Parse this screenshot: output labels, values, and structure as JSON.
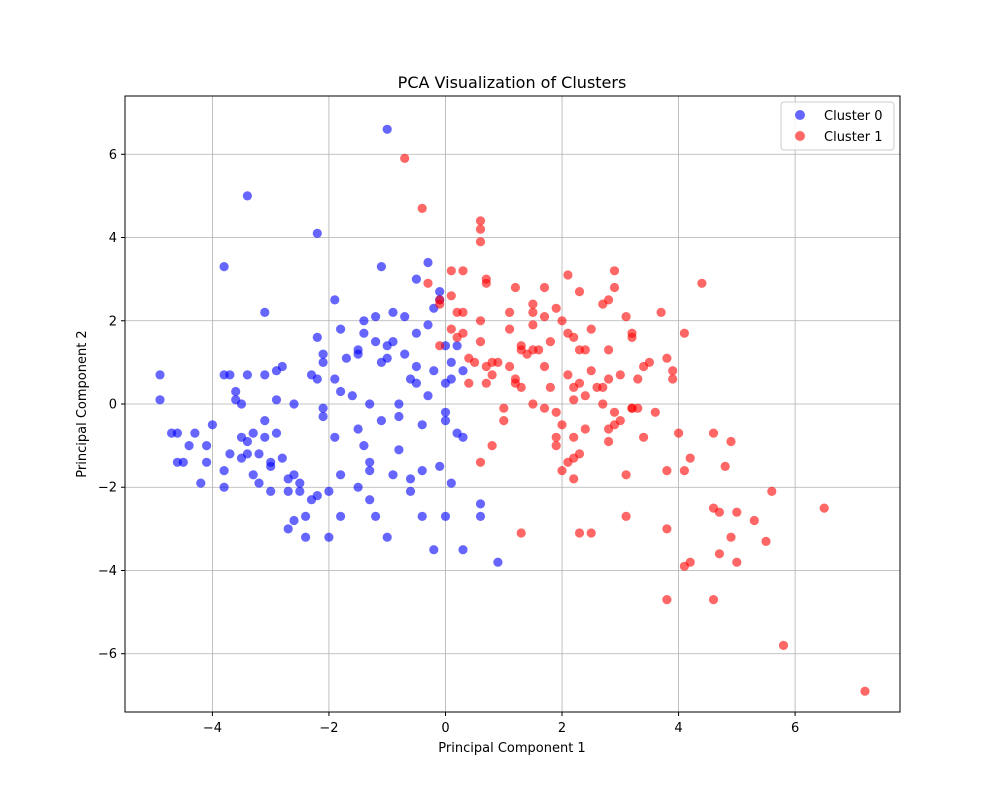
{
  "chart_data": {
    "type": "scatter",
    "title": "PCA Visualization of Clusters",
    "xlabel": "Principal Component 1",
    "ylabel": "Principal Component 2",
    "xlim": [
      -5.5,
      7.8
    ],
    "ylim": [
      -7.4,
      7.4
    ],
    "xticks": [
      -4,
      -2,
      0,
      2,
      4,
      6
    ],
    "yticks": [
      -6,
      -4,
      -2,
      0,
      2,
      4,
      6
    ],
    "xtick_labels": [
      "−4",
      "−2",
      "0",
      "2",
      "4",
      "6"
    ],
    "ytick_labels": [
      "−6",
      "−4",
      "−2",
      "0",
      "2",
      "4",
      "6"
    ],
    "grid": true,
    "legend_position": "top-right",
    "series": [
      {
        "name": "Cluster 0",
        "color": "#0000ff",
        "points": [
          [
            -4.9,
            0.7
          ],
          [
            -4.9,
            0.1
          ],
          [
            -4.7,
            -0.7
          ],
          [
            -4.6,
            -0.7
          ],
          [
            -4.6,
            -1.4
          ],
          [
            -4.5,
            -1.4
          ],
          [
            -4.4,
            -1.0
          ],
          [
            -4.3,
            -0.7
          ],
          [
            -4.2,
            -1.9
          ],
          [
            -4.1,
            -1.0
          ],
          [
            -4.1,
            -1.4
          ],
          [
            -4.0,
            -0.5
          ],
          [
            -3.8,
            0.7
          ],
          [
            -3.8,
            3.3
          ],
          [
            -3.7,
            0.7
          ],
          [
            -3.8,
            -1.6
          ],
          [
            -3.8,
            -2.0
          ],
          [
            -3.7,
            -1.2
          ],
          [
            -3.6,
            0.1
          ],
          [
            -3.6,
            0.3
          ],
          [
            -3.5,
            0.0
          ],
          [
            -3.5,
            -0.8
          ],
          [
            -3.5,
            -1.3
          ],
          [
            -3.4,
            0.7
          ],
          [
            -3.4,
            -0.9
          ],
          [
            -3.4,
            -1.2
          ],
          [
            -3.4,
            5.0
          ],
          [
            -3.3,
            -0.7
          ],
          [
            -3.3,
            -1.7
          ],
          [
            -3.2,
            -1.2
          ],
          [
            -3.2,
            -1.9
          ],
          [
            -3.1,
            0.7
          ],
          [
            -3.1,
            -0.4
          ],
          [
            -3.1,
            -0.8
          ],
          [
            -3.1,
            2.2
          ],
          [
            -3.0,
            -1.5
          ],
          [
            -3.0,
            -2.1
          ],
          [
            -3.0,
            -1.4
          ],
          [
            -2.9,
            0.8
          ],
          [
            -2.9,
            0.1
          ],
          [
            -2.9,
            -0.7
          ],
          [
            -2.8,
            0.9
          ],
          [
            -2.8,
            -1.3
          ],
          [
            -2.7,
            -2.1
          ],
          [
            -2.7,
            -1.8
          ],
          [
            -2.7,
            -3.0
          ],
          [
            -2.6,
            -1.7
          ],
          [
            -2.6,
            0.0
          ],
          [
            -2.6,
            -2.8
          ],
          [
            -2.5,
            -1.9
          ],
          [
            -2.5,
            -2.1
          ],
          [
            -2.4,
            -2.7
          ],
          [
            -2.4,
            -3.2
          ],
          [
            -2.3,
            0.7
          ],
          [
            -2.3,
            -2.3
          ],
          [
            -2.2,
            0.6
          ],
          [
            -2.2,
            1.6
          ],
          [
            -2.2,
            4.1
          ],
          [
            -2.2,
            -2.2
          ],
          [
            -2.1,
            1.0
          ],
          [
            -2.1,
            1.2
          ],
          [
            -2.1,
            -0.1
          ],
          [
            -2.1,
            -0.3
          ],
          [
            -2.0,
            -3.2
          ],
          [
            -2.0,
            -2.1
          ],
          [
            -1.9,
            -0.8
          ],
          [
            -1.9,
            0.6
          ],
          [
            -1.9,
            2.5
          ],
          [
            -1.8,
            1.8
          ],
          [
            -1.8,
            0.3
          ],
          [
            -1.8,
            -1.7
          ],
          [
            -1.8,
            -2.7
          ],
          [
            -1.7,
            1.1
          ],
          [
            -1.6,
            0.2
          ],
          [
            -1.5,
            1.2
          ],
          [
            -1.5,
            1.3
          ],
          [
            -1.5,
            -0.6
          ],
          [
            -1.5,
            -2.0
          ],
          [
            -1.4,
            1.7
          ],
          [
            -1.4,
            2.0
          ],
          [
            -1.4,
            -1.0
          ],
          [
            -1.3,
            -1.6
          ],
          [
            -1.3,
            -2.3
          ],
          [
            -1.3,
            0.0
          ],
          [
            -1.3,
            -1.4
          ],
          [
            -1.2,
            2.1
          ],
          [
            -1.2,
            1.5
          ],
          [
            -1.2,
            -2.7
          ],
          [
            -1.1,
            1.0
          ],
          [
            -1.1,
            3.3
          ],
          [
            -1.1,
            -0.4
          ],
          [
            -1.0,
            6.6
          ],
          [
            -1.0,
            -3.2
          ],
          [
            -1.0,
            1.4
          ],
          [
            -1.0,
            1.1
          ],
          [
            -0.9,
            2.2
          ],
          [
            -0.9,
            1.5
          ],
          [
            -0.9,
            -1.7
          ],
          [
            -0.8,
            0.0
          ],
          [
            -0.8,
            -0.3
          ],
          [
            -0.8,
            -1.1
          ],
          [
            -0.7,
            2.1
          ],
          [
            -0.7,
            1.2
          ],
          [
            -0.6,
            0.6
          ],
          [
            -0.6,
            -2.1
          ],
          [
            -0.6,
            -1.8
          ],
          [
            -0.5,
            0.5
          ],
          [
            -0.5,
            3.0
          ],
          [
            -0.5,
            1.7
          ],
          [
            -0.5,
            0.9
          ],
          [
            -0.4,
            -0.5
          ],
          [
            -0.4,
            -1.6
          ],
          [
            -0.4,
            -2.7
          ],
          [
            -0.3,
            3.4
          ],
          [
            -0.3,
            1.9
          ],
          [
            -0.3,
            0.2
          ],
          [
            -0.2,
            0.8
          ],
          [
            -0.2,
            2.3
          ],
          [
            -0.2,
            -3.5
          ],
          [
            -0.1,
            2.7
          ],
          [
            -0.1,
            2.5
          ],
          [
            -0.1,
            -1.5
          ],
          [
            0.0,
            1.4
          ],
          [
            0.0,
            0.5
          ],
          [
            0.0,
            -0.2
          ],
          [
            0.1,
            1.0
          ],
          [
            0.1,
            -1.9
          ],
          [
            0.1,
            0.6
          ],
          [
            0.2,
            1.4
          ],
          [
            0.2,
            -0.7
          ],
          [
            0.3,
            0.8
          ],
          [
            0.3,
            -0.8
          ],
          [
            0.3,
            -3.5
          ],
          [
            0.6,
            -2.4
          ],
          [
            0.6,
            -2.7
          ],
          [
            0.9,
            -3.8
          ],
          [
            -0.0,
            -2.7
          ],
          [
            0.0,
            -0.4
          ]
        ]
      },
      {
        "name": "Cluster 1",
        "color": "#ff0000",
        "points": [
          [
            -0.7,
            5.9
          ],
          [
            -0.4,
            4.7
          ],
          [
            -0.3,
            2.9
          ],
          [
            -0.1,
            2.4
          ],
          [
            -0.1,
            2.5
          ],
          [
            -0.1,
            1.4
          ],
          [
            0.1,
            3.2
          ],
          [
            0.1,
            2.6
          ],
          [
            0.1,
            1.8
          ],
          [
            0.2,
            2.2
          ],
          [
            0.2,
            1.6
          ],
          [
            0.3,
            3.2
          ],
          [
            0.3,
            1.7
          ],
          [
            0.3,
            2.2
          ],
          [
            0.4,
            1.1
          ],
          [
            0.4,
            0.5
          ],
          [
            0.5,
            1.0
          ],
          [
            0.6,
            4.4
          ],
          [
            0.6,
            4.2
          ],
          [
            0.6,
            3.9
          ],
          [
            0.6,
            2.0
          ],
          [
            0.6,
            1.5
          ],
          [
            0.6,
            -1.4
          ],
          [
            0.7,
            3.0
          ],
          [
            0.7,
            2.9
          ],
          [
            0.7,
            0.9
          ],
          [
            0.7,
            0.5
          ],
          [
            0.8,
            0.7
          ],
          [
            0.8,
            1.0
          ],
          [
            0.8,
            -1.0
          ],
          [
            0.9,
            1.0
          ],
          [
            1.0,
            -0.1
          ],
          [
            1.0,
            -0.4
          ],
          [
            1.1,
            1.8
          ],
          [
            1.1,
            2.2
          ],
          [
            1.1,
            0.9
          ],
          [
            1.2,
            0.6
          ],
          [
            1.2,
            0.5
          ],
          [
            1.2,
            2.8
          ],
          [
            1.3,
            1.3
          ],
          [
            1.3,
            1.4
          ],
          [
            1.3,
            0.4
          ],
          [
            1.3,
            -3.1
          ],
          [
            1.4,
            1.2
          ],
          [
            1.5,
            2.4
          ],
          [
            1.5,
            1.3
          ],
          [
            1.5,
            1.9
          ],
          [
            1.5,
            2.2
          ],
          [
            1.5,
            0.0
          ],
          [
            1.6,
            1.3
          ],
          [
            1.7,
            2.1
          ],
          [
            1.7,
            2.8
          ],
          [
            1.7,
            -0.1
          ],
          [
            1.7,
            0.9
          ],
          [
            1.8,
            1.5
          ],
          [
            1.8,
            0.4
          ],
          [
            1.9,
            -0.2
          ],
          [
            1.9,
            2.3
          ],
          [
            1.9,
            -0.8
          ],
          [
            1.9,
            -1.0
          ],
          [
            2.0,
            2.0
          ],
          [
            2.0,
            -0.5
          ],
          [
            2.0,
            -1.6
          ],
          [
            2.1,
            3.1
          ],
          [
            2.1,
            1.7
          ],
          [
            2.1,
            0.7
          ],
          [
            2.1,
            -1.4
          ],
          [
            2.2,
            0.4
          ],
          [
            2.2,
            0.1
          ],
          [
            2.2,
            1.6
          ],
          [
            2.2,
            -0.8
          ],
          [
            2.2,
            -1.3
          ],
          [
            2.2,
            -1.8
          ],
          [
            2.3,
            0.5
          ],
          [
            2.3,
            2.7
          ],
          [
            2.3,
            1.3
          ],
          [
            2.3,
            -1.2
          ],
          [
            2.3,
            -3.1
          ],
          [
            2.4,
            1.3
          ],
          [
            2.4,
            0.2
          ],
          [
            2.4,
            -0.6
          ],
          [
            2.5,
            1.8
          ],
          [
            2.5,
            0.8
          ],
          [
            2.5,
            -3.1
          ],
          [
            2.6,
            0.4
          ],
          [
            2.7,
            2.4
          ],
          [
            2.7,
            0.4
          ],
          [
            2.7,
            0.0
          ],
          [
            2.8,
            1.3
          ],
          [
            2.8,
            2.5
          ],
          [
            2.8,
            0.6
          ],
          [
            2.8,
            -0.6
          ],
          [
            2.8,
            -0.9
          ],
          [
            2.9,
            3.2
          ],
          [
            2.9,
            2.8
          ],
          [
            2.9,
            -0.2
          ],
          [
            2.9,
            -0.5
          ],
          [
            3.0,
            0.7
          ],
          [
            3.0,
            -0.4
          ],
          [
            3.1,
            2.1
          ],
          [
            3.1,
            -1.7
          ],
          [
            3.1,
            -2.7
          ],
          [
            3.2,
            1.6
          ],
          [
            3.2,
            1.7
          ],
          [
            3.2,
            -0.1
          ],
          [
            3.2,
            -0.1
          ],
          [
            3.3,
            -0.1
          ],
          [
            3.3,
            0.6
          ],
          [
            3.4,
            0.9
          ],
          [
            3.4,
            -0.8
          ],
          [
            3.5,
            1.0
          ],
          [
            3.6,
            -0.2
          ],
          [
            3.7,
            2.2
          ],
          [
            3.8,
            1.1
          ],
          [
            3.8,
            -1.6
          ],
          [
            3.8,
            -3.0
          ],
          [
            3.8,
            -4.7
          ],
          [
            3.9,
            0.8
          ],
          [
            3.9,
            0.6
          ],
          [
            4.0,
            -0.7
          ],
          [
            4.1,
            1.7
          ],
          [
            4.1,
            -1.6
          ],
          [
            4.1,
            -3.9
          ],
          [
            4.2,
            -3.8
          ],
          [
            4.2,
            -1.3
          ],
          [
            4.4,
            2.9
          ],
          [
            4.6,
            -2.5
          ],
          [
            4.6,
            -0.7
          ],
          [
            4.6,
            -4.7
          ],
          [
            4.7,
            -2.6
          ],
          [
            4.7,
            -3.6
          ],
          [
            4.8,
            -1.5
          ],
          [
            4.9,
            -0.9
          ],
          [
            4.9,
            -3.2
          ],
          [
            5.0,
            -2.6
          ],
          [
            5.0,
            -3.8
          ],
          [
            5.3,
            -2.8
          ],
          [
            5.5,
            -3.3
          ],
          [
            5.6,
            -2.1
          ],
          [
            5.8,
            -5.8
          ],
          [
            6.5,
            -2.5
          ],
          [
            7.2,
            -6.9
          ]
        ]
      }
    ]
  }
}
